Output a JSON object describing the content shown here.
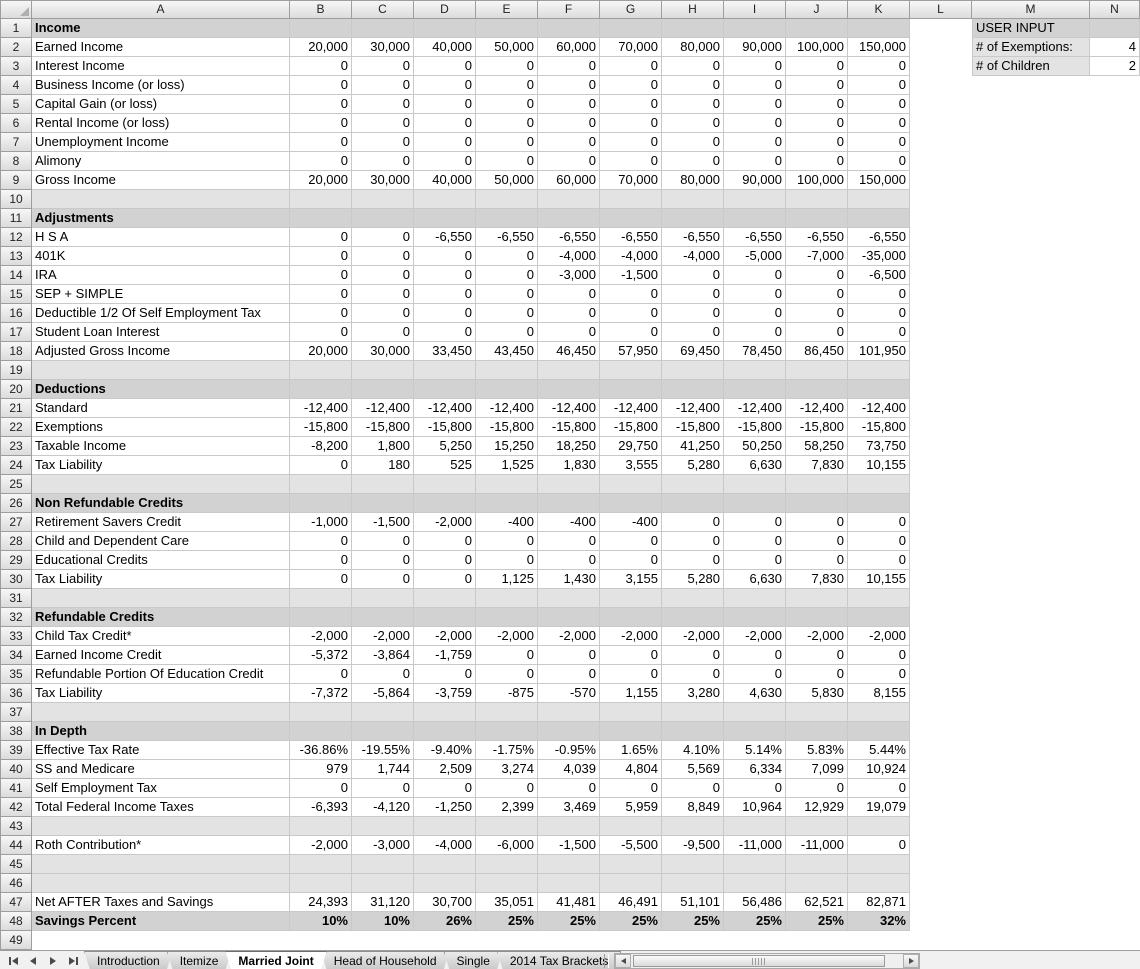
{
  "columns": [
    "A",
    "B",
    "C",
    "D",
    "E",
    "F",
    "G",
    "H",
    "I",
    "J",
    "K",
    "L",
    "M",
    "N"
  ],
  "user_input": {
    "title": "USER INPUT",
    "rows": [
      {
        "label": "# of Exemptions:",
        "value": "4"
      },
      {
        "label": "# of Children",
        "value": "2"
      }
    ]
  },
  "rows": [
    {
      "n": 1,
      "kind": "section",
      "label": "Income"
    },
    {
      "n": 2,
      "kind": "data",
      "label": "Earned Income",
      "values": [
        "20,000",
        "30,000",
        "40,000",
        "50,000",
        "60,000",
        "70,000",
        "80,000",
        "90,000",
        "100,000",
        "150,000"
      ]
    },
    {
      "n": 3,
      "kind": "data",
      "label": "Interest Income",
      "values": [
        "0",
        "0",
        "0",
        "0",
        "0",
        "0",
        "0",
        "0",
        "0",
        "0"
      ]
    },
    {
      "n": 4,
      "kind": "data",
      "label": "Business Income (or loss)",
      "values": [
        "0",
        "0",
        "0",
        "0",
        "0",
        "0",
        "0",
        "0",
        "0",
        "0"
      ]
    },
    {
      "n": 5,
      "kind": "data",
      "label": "Capital Gain (or loss)",
      "values": [
        "0",
        "0",
        "0",
        "0",
        "0",
        "0",
        "0",
        "0",
        "0",
        "0"
      ]
    },
    {
      "n": 6,
      "kind": "data",
      "label": "Rental Income (or loss)",
      "values": [
        "0",
        "0",
        "0",
        "0",
        "0",
        "0",
        "0",
        "0",
        "0",
        "0"
      ]
    },
    {
      "n": 7,
      "kind": "data",
      "label": "Unemployment Income",
      "values": [
        "0",
        "0",
        "0",
        "0",
        "0",
        "0",
        "0",
        "0",
        "0",
        "0"
      ]
    },
    {
      "n": 8,
      "kind": "data",
      "label": "Alimony",
      "values": [
        "0",
        "0",
        "0",
        "0",
        "0",
        "0",
        "0",
        "0",
        "0",
        "0"
      ]
    },
    {
      "n": 9,
      "kind": "data",
      "label": "Gross Income",
      "values": [
        "20,000",
        "30,000",
        "40,000",
        "50,000",
        "60,000",
        "70,000",
        "80,000",
        "90,000",
        "100,000",
        "150,000"
      ]
    },
    {
      "n": 10,
      "kind": "spacer"
    },
    {
      "n": 11,
      "kind": "section",
      "label": "Adjustments"
    },
    {
      "n": 12,
      "kind": "data",
      "label": "H S A",
      "values": [
        "0",
        "0",
        "-6,550",
        "-6,550",
        "-6,550",
        "-6,550",
        "-6,550",
        "-6,550",
        "-6,550",
        "-6,550"
      ]
    },
    {
      "n": 13,
      "kind": "data",
      "label": "401K",
      "values": [
        "0",
        "0",
        "0",
        "0",
        "-4,000",
        "-4,000",
        "-4,000",
        "-5,000",
        "-7,000",
        "-35,000"
      ]
    },
    {
      "n": 14,
      "kind": "data",
      "label": "IRA",
      "values": [
        "0",
        "0",
        "0",
        "0",
        "-3,000",
        "-1,500",
        "0",
        "0",
        "0",
        "-6,500"
      ]
    },
    {
      "n": 15,
      "kind": "data",
      "label": "SEP + SIMPLE",
      "values": [
        "0",
        "0",
        "0",
        "0",
        "0",
        "0",
        "0",
        "0",
        "0",
        "0"
      ]
    },
    {
      "n": 16,
      "kind": "data",
      "label": "Deductible 1/2 Of Self Employment Tax",
      "values": [
        "0",
        "0",
        "0",
        "0",
        "0",
        "0",
        "0",
        "0",
        "0",
        "0"
      ]
    },
    {
      "n": 17,
      "kind": "data",
      "label": "Student Loan Interest",
      "values": [
        "0",
        "0",
        "0",
        "0",
        "0",
        "0",
        "0",
        "0",
        "0",
        "0"
      ]
    },
    {
      "n": 18,
      "kind": "data",
      "label": "Adjusted Gross Income",
      "values": [
        "20,000",
        "30,000",
        "33,450",
        "43,450",
        "46,450",
        "57,950",
        "69,450",
        "78,450",
        "86,450",
        "101,950"
      ]
    },
    {
      "n": 19,
      "kind": "spacer"
    },
    {
      "n": 20,
      "kind": "section",
      "label": "Deductions"
    },
    {
      "n": 21,
      "kind": "data",
      "label": "Standard",
      "values": [
        "-12,400",
        "-12,400",
        "-12,400",
        "-12,400",
        "-12,400",
        "-12,400",
        "-12,400",
        "-12,400",
        "-12,400",
        "-12,400"
      ]
    },
    {
      "n": 22,
      "kind": "data",
      "label": "Exemptions",
      "values": [
        "-15,800",
        "-15,800",
        "-15,800",
        "-15,800",
        "-15,800",
        "-15,800",
        "-15,800",
        "-15,800",
        "-15,800",
        "-15,800"
      ]
    },
    {
      "n": 23,
      "kind": "data",
      "label": "Taxable Income",
      "values": [
        "-8,200",
        "1,800",
        "5,250",
        "15,250",
        "18,250",
        "29,750",
        "41,250",
        "50,250",
        "58,250",
        "73,750"
      ]
    },
    {
      "n": 24,
      "kind": "data",
      "label": "Tax Liability",
      "values": [
        "0",
        "180",
        "525",
        "1,525",
        "1,830",
        "3,555",
        "5,280",
        "6,630",
        "7,830",
        "10,155"
      ]
    },
    {
      "n": 25,
      "kind": "spacer"
    },
    {
      "n": 26,
      "kind": "section",
      "label": "Non Refundable Credits"
    },
    {
      "n": 27,
      "kind": "data",
      "label": "Retirement Savers Credit",
      "values": [
        "-1,000",
        "-1,500",
        "-2,000",
        "-400",
        "-400",
        "-400",
        "0",
        "0",
        "0",
        "0"
      ]
    },
    {
      "n": 28,
      "kind": "data",
      "label": "Child and Dependent Care",
      "values": [
        "0",
        "0",
        "0",
        "0",
        "0",
        "0",
        "0",
        "0",
        "0",
        "0"
      ]
    },
    {
      "n": 29,
      "kind": "data",
      "label": "Educational Credits",
      "values": [
        "0",
        "0",
        "0",
        "0",
        "0",
        "0",
        "0",
        "0",
        "0",
        "0"
      ]
    },
    {
      "n": 30,
      "kind": "data",
      "label": "Tax Liability",
      "values": [
        "0",
        "0",
        "0",
        "1,125",
        "1,430",
        "3,155",
        "5,280",
        "6,630",
        "7,830",
        "10,155"
      ]
    },
    {
      "n": 31,
      "kind": "spacer"
    },
    {
      "n": 32,
      "kind": "section",
      "label": "Refundable Credits"
    },
    {
      "n": 33,
      "kind": "data",
      "label": "Child Tax Credit*",
      "values": [
        "-2,000",
        "-2,000",
        "-2,000",
        "-2,000",
        "-2,000",
        "-2,000",
        "-2,000",
        "-2,000",
        "-2,000",
        "-2,000"
      ]
    },
    {
      "n": 34,
      "kind": "data",
      "label": "Earned Income Credit",
      "values": [
        "-5,372",
        "-3,864",
        "-1,759",
        "0",
        "0",
        "0",
        "0",
        "0",
        "0",
        "0"
      ]
    },
    {
      "n": 35,
      "kind": "data",
      "label": "Refundable Portion Of Education Credit",
      "values": [
        "0",
        "0",
        "0",
        "0",
        "0",
        "0",
        "0",
        "0",
        "0",
        "0"
      ]
    },
    {
      "n": 36,
      "kind": "data",
      "label": "Tax Liability",
      "values": [
        "-7,372",
        "-5,864",
        "-3,759",
        "-875",
        "-570",
        "1,155",
        "3,280",
        "4,630",
        "5,830",
        "8,155"
      ]
    },
    {
      "n": 37,
      "kind": "spacer"
    },
    {
      "n": 38,
      "kind": "section",
      "label": "In Depth"
    },
    {
      "n": 39,
      "kind": "data",
      "label": "Effective Tax Rate",
      "values": [
        "-36.86%",
        "-19.55%",
        "-9.40%",
        "-1.75%",
        "-0.95%",
        "1.65%",
        "4.10%",
        "5.14%",
        "5.83%",
        "5.44%"
      ]
    },
    {
      "n": 40,
      "kind": "data",
      "label": "SS and Medicare",
      "values": [
        "979",
        "1,744",
        "2,509",
        "3,274",
        "4,039",
        "4,804",
        "5,569",
        "6,334",
        "7,099",
        "10,924"
      ]
    },
    {
      "n": 41,
      "kind": "data",
      "label": "Self Employment Tax",
      "values": [
        "0",
        "0",
        "0",
        "0",
        "0",
        "0",
        "0",
        "0",
        "0",
        "0"
      ]
    },
    {
      "n": 42,
      "kind": "data",
      "label": "Total Federal Income Taxes",
      "values": [
        "-6,393",
        "-4,120",
        "-1,250",
        "2,399",
        "3,469",
        "5,959",
        "8,849",
        "10,964",
        "12,929",
        "19,079"
      ]
    },
    {
      "n": 43,
      "kind": "spacer"
    },
    {
      "n": 44,
      "kind": "data",
      "label": "Roth Contribution*",
      "values": [
        "-2,000",
        "-3,000",
        "-4,000",
        "-6,000",
        "-1,500",
        "-5,500",
        "-9,500",
        "-11,000",
        "-11,000",
        "0"
      ]
    },
    {
      "n": 45,
      "kind": "spacer"
    },
    {
      "n": 46,
      "kind": "spacer"
    },
    {
      "n": 47,
      "kind": "data",
      "label": "Net AFTER Taxes and Savings",
      "values": [
        "24,393",
        "31,120",
        "30,700",
        "35,051",
        "41,481",
        "46,491",
        "51,101",
        "56,486",
        "62,521",
        "82,871"
      ]
    },
    {
      "n": 48,
      "kind": "total",
      "label": "Savings Percent",
      "values": [
        "10%",
        "10%",
        "26%",
        "25%",
        "25%",
        "25%",
        "25%",
        "25%",
        "25%",
        "32%"
      ]
    },
    {
      "n": 49,
      "kind": "plain"
    }
  ],
  "tab_bar": {
    "nav_buttons": [
      "first-sheet",
      "previous-sheet",
      "next-sheet",
      "last-sheet"
    ],
    "tabs": [
      {
        "label": "Introduction",
        "active": false
      },
      {
        "label": "Itemize",
        "active": false
      },
      {
        "label": "Married Joint",
        "active": true
      },
      {
        "label": "Head of Household",
        "active": false
      },
      {
        "label": "Single",
        "active": false
      },
      {
        "label": "2014 Tax Brackets",
        "active": false
      }
    ]
  }
}
